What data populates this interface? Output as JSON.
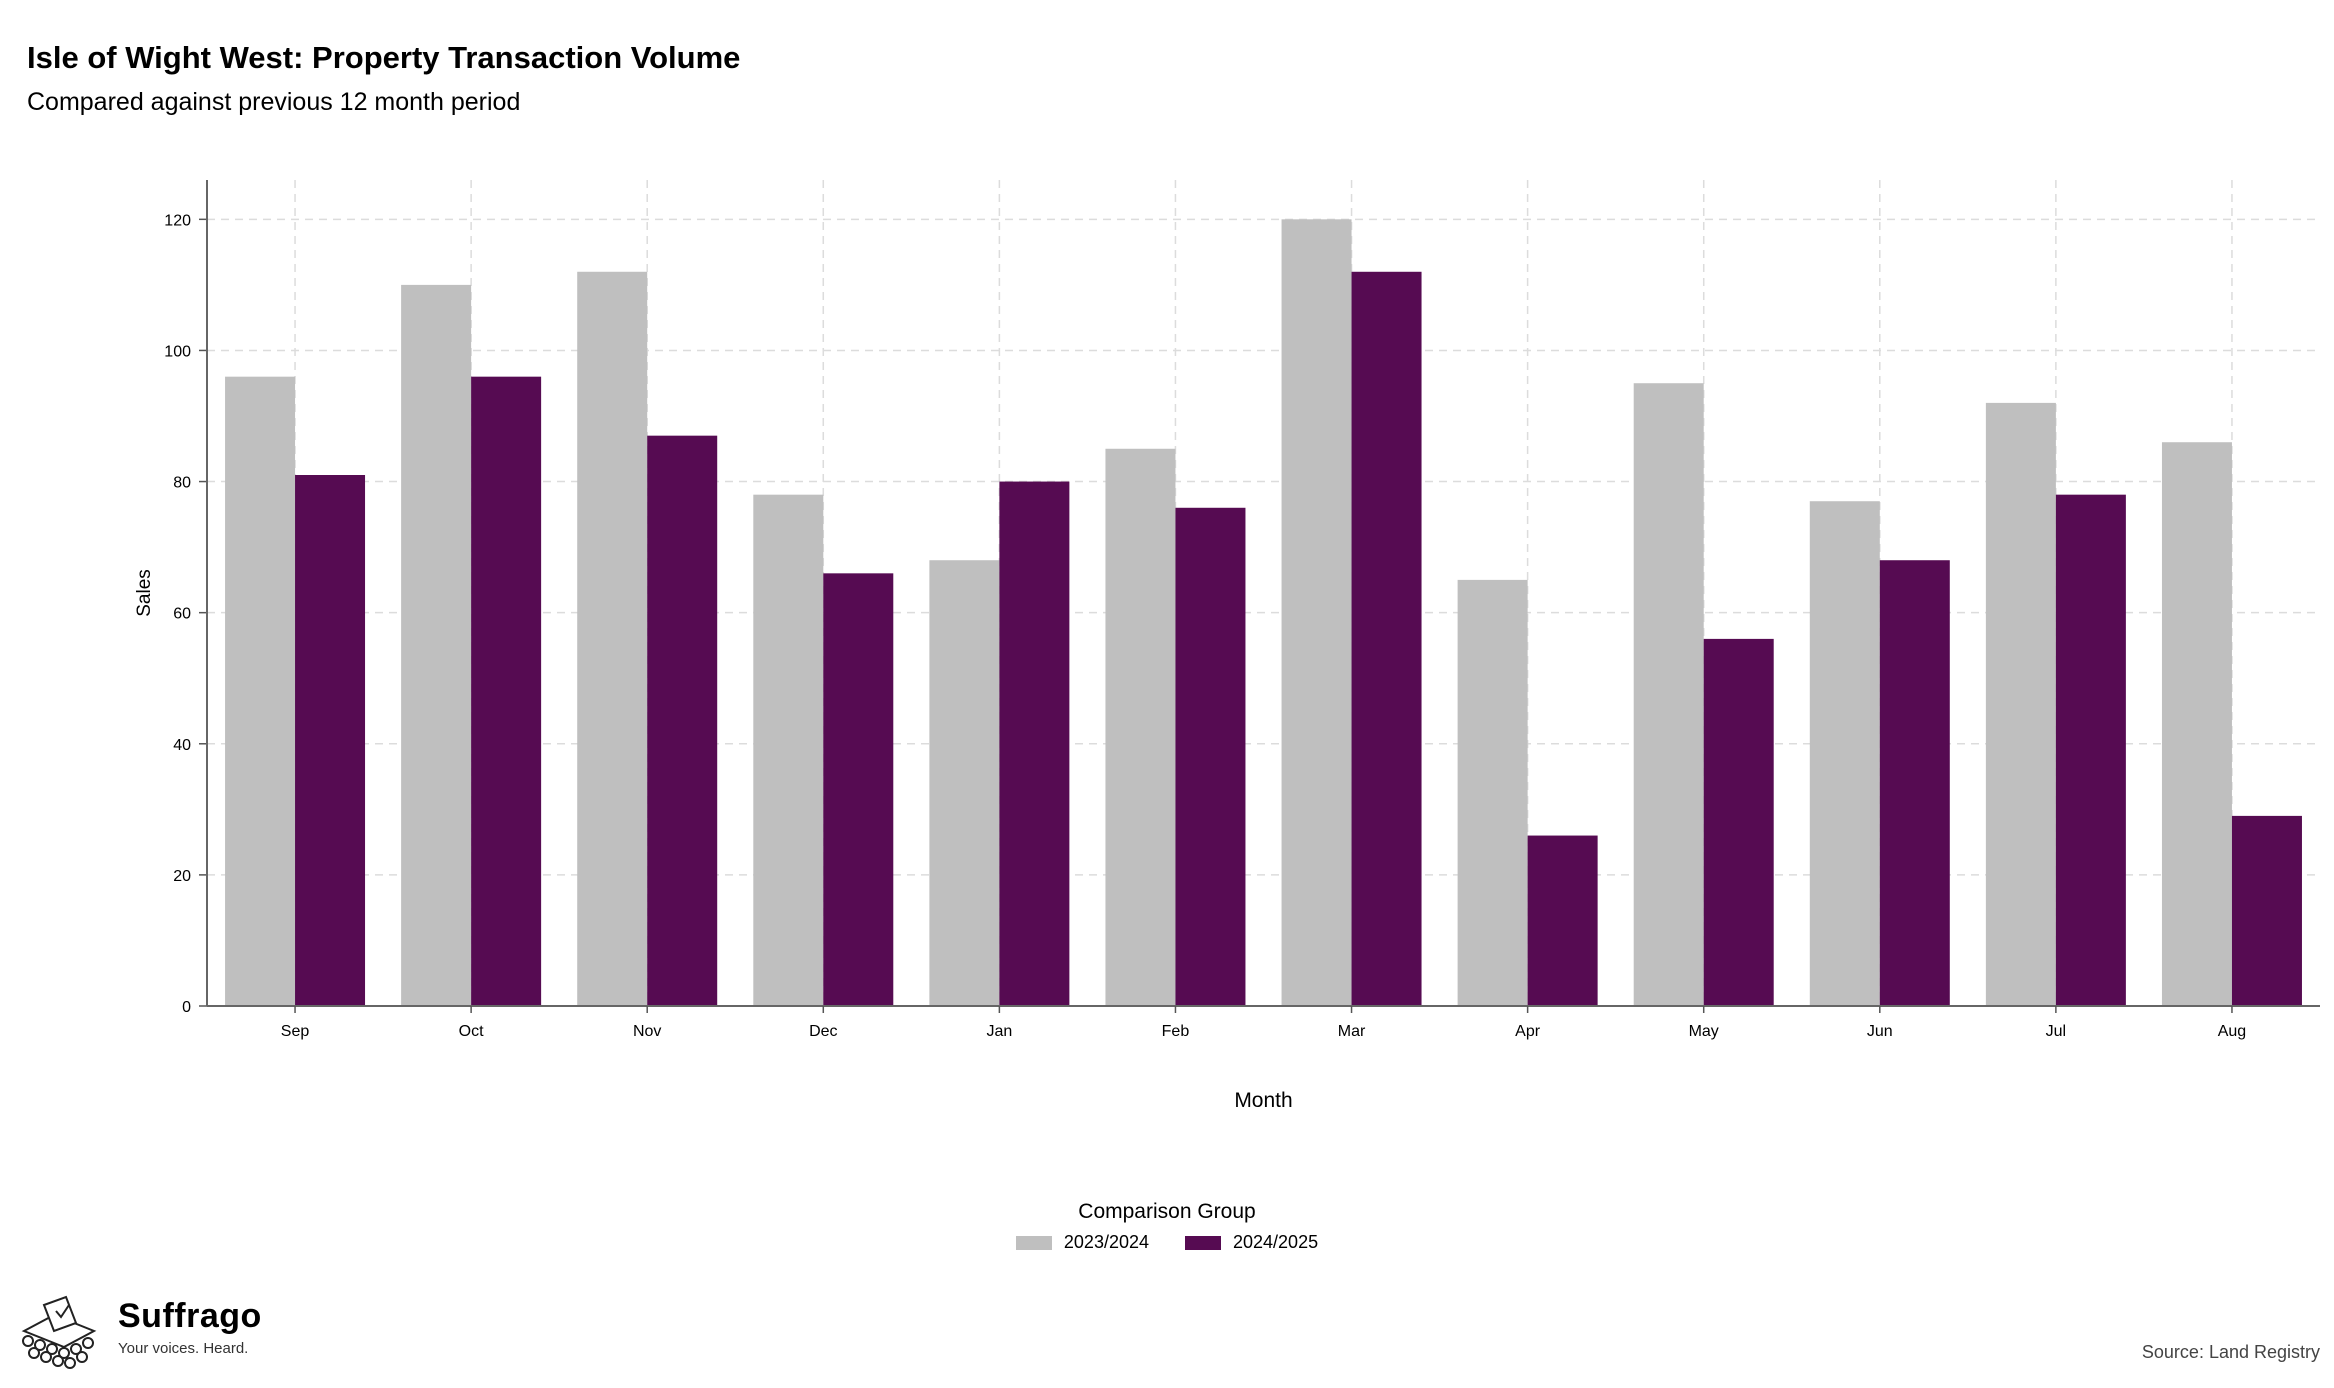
{
  "header": {
    "title": "Isle of Wight West: Property Transaction Volume",
    "subtitle": "Compared against previous 12 month period"
  },
  "chart_data": {
    "type": "bar",
    "title": "Isle of Wight West: Property Transaction Volume",
    "subtitle": "Compared against previous 12 month period",
    "xlabel": "Month",
    "ylabel": "Sales",
    "ylim": [
      0,
      126
    ],
    "yticks": [
      0,
      20,
      40,
      60,
      80,
      100,
      120
    ],
    "grid": true,
    "legend_title": "Comparison Group",
    "legend_position": "bottom",
    "categories": [
      "Sep",
      "Oct",
      "Nov",
      "Dec",
      "Jan",
      "Feb",
      "Mar",
      "Apr",
      "May",
      "Jun",
      "Jul",
      "Aug"
    ],
    "series": [
      {
        "name": "2023/2024",
        "color": "#bfbfbf",
        "values": [
          96,
          110,
          112,
          78,
          68,
          85,
          120,
          65,
          95,
          77,
          92,
          86
        ]
      },
      {
        "name": "2024/2025",
        "color": "#560b52",
        "values": [
          81,
          96,
          87,
          66,
          80,
          76,
          112,
          26,
          56,
          68,
          78,
          29
        ]
      }
    ]
  },
  "footer": {
    "brand_name": "Suffrago",
    "tagline": "Your voices. Heard.",
    "source": "Source: Land Registry"
  }
}
